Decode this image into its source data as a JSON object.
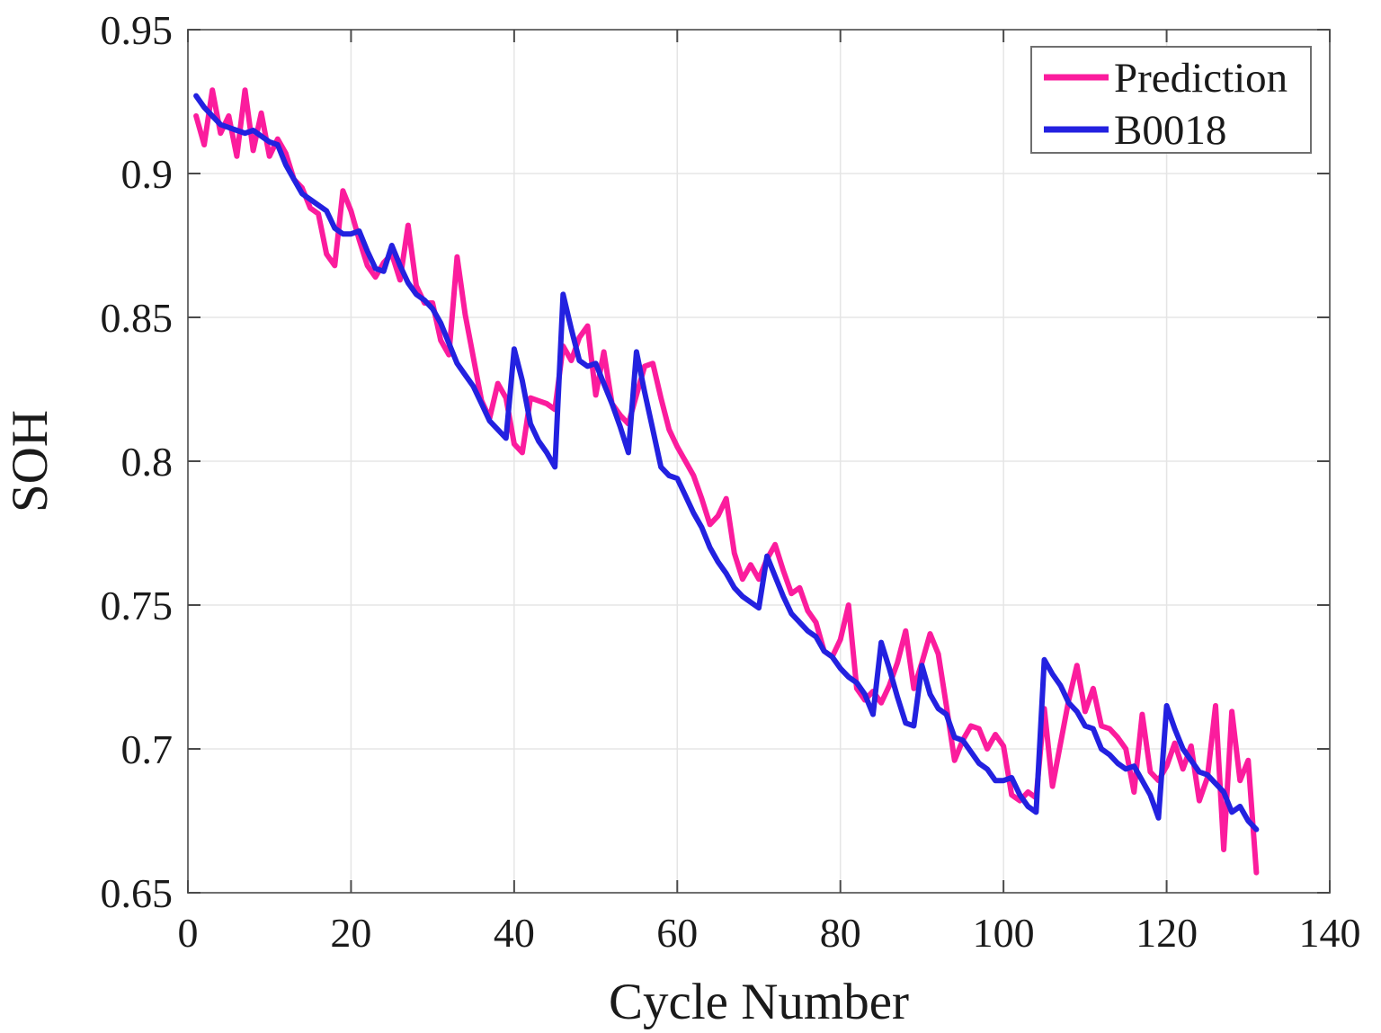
{
  "figure": {
    "background": "#ffffff",
    "text_color": "#1a1a1a",
    "axis_box_color": "#6f6f6f",
    "tick_color": "#4a4a4a",
    "grid_color": "#e5e5e5",
    "legend_border_color": "#6f6f6f"
  },
  "chart_data": {
    "type": "line",
    "title": "",
    "xlabel": "Cycle Number",
    "ylabel": "SOH",
    "xlim": [
      0,
      140
    ],
    "ylim": [
      0.65,
      0.95
    ],
    "x_ticks": [
      0,
      20,
      40,
      60,
      80,
      100,
      120,
      140
    ],
    "x_tick_labels": [
      "0",
      "20",
      "40",
      "60",
      "80",
      "100",
      "120",
      "140"
    ],
    "y_ticks": [
      0.65,
      0.7,
      0.75,
      0.8,
      0.85,
      0.9,
      0.95
    ],
    "y_tick_labels": [
      "0.65",
      "0.7",
      "0.75",
      "0.8",
      "0.85",
      "0.9",
      "0.95"
    ],
    "grid": true,
    "legend_position": "top-right",
    "x_start": 1,
    "x_step": 1,
    "series": [
      {
        "name": "Prediction",
        "color": "#fb1c9d",
        "line_width": 6,
        "values": [
          0.92,
          0.91,
          0.929,
          0.914,
          0.92,
          0.906,
          0.929,
          0.908,
          0.921,
          0.906,
          0.912,
          0.907,
          0.898,
          0.895,
          0.888,
          0.886,
          0.872,
          0.868,
          0.894,
          0.887,
          0.877,
          0.868,
          0.864,
          0.869,
          0.872,
          0.863,
          0.882,
          0.861,
          0.855,
          0.855,
          0.842,
          0.837,
          0.871,
          0.851,
          0.836,
          0.821,
          0.815,
          0.827,
          0.822,
          0.806,
          0.803,
          0.822,
          0.821,
          0.82,
          0.818,
          0.84,
          0.835,
          0.843,
          0.847,
          0.823,
          0.838,
          0.82,
          0.816,
          0.813,
          0.823,
          0.833,
          0.834,
          0.822,
          0.811,
          0.805,
          0.8,
          0.795,
          0.787,
          0.778,
          0.781,
          0.787,
          0.768,
          0.759,
          0.764,
          0.759,
          0.766,
          0.771,
          0.762,
          0.754,
          0.756,
          0.748,
          0.744,
          0.734,
          0.732,
          0.738,
          0.75,
          0.721,
          0.717,
          0.72,
          0.716,
          0.722,
          0.73,
          0.741,
          0.721,
          0.73,
          0.74,
          0.733,
          0.715,
          0.696,
          0.703,
          0.708,
          0.707,
          0.7,
          0.705,
          0.701,
          0.684,
          0.682,
          0.685,
          0.683,
          0.714,
          0.687,
          0.702,
          0.717,
          0.729,
          0.713,
          0.721,
          0.708,
          0.707,
          0.704,
          0.7,
          0.685,
          0.712,
          0.692,
          0.689,
          0.694,
          0.702,
          0.693,
          0.701,
          0.682,
          0.69,
          0.715,
          0.665,
          0.713,
          0.689,
          0.696,
          0.657
        ]
      },
      {
        "name": "B0018",
        "color": "#2321e0",
        "line_width": 6,
        "values": [
          0.927,
          0.923,
          0.92,
          0.917,
          0.916,
          0.915,
          0.914,
          0.915,
          0.913,
          0.911,
          0.91,
          0.903,
          0.898,
          0.893,
          0.891,
          0.889,
          0.887,
          0.881,
          0.879,
          0.879,
          0.88,
          0.873,
          0.867,
          0.866,
          0.875,
          0.868,
          0.862,
          0.858,
          0.856,
          0.853,
          0.848,
          0.841,
          0.834,
          0.83,
          0.826,
          0.82,
          0.814,
          0.811,
          0.808,
          0.839,
          0.828,
          0.813,
          0.807,
          0.803,
          0.798,
          0.858,
          0.846,
          0.835,
          0.833,
          0.834,
          0.827,
          0.82,
          0.812,
          0.803,
          0.838,
          0.824,
          0.811,
          0.798,
          0.795,
          0.794,
          0.788,
          0.782,
          0.777,
          0.77,
          0.765,
          0.761,
          0.756,
          0.753,
          0.751,
          0.749,
          0.767,
          0.76,
          0.753,
          0.747,
          0.744,
          0.741,
          0.739,
          0.734,
          0.732,
          0.728,
          0.725,
          0.723,
          0.719,
          0.712,
          0.737,
          0.728,
          0.718,
          0.709,
          0.708,
          0.729,
          0.719,
          0.714,
          0.712,
          0.704,
          0.703,
          0.699,
          0.695,
          0.693,
          0.689,
          0.689,
          0.69,
          0.684,
          0.68,
          0.678,
          0.731,
          0.726,
          0.722,
          0.716,
          0.713,
          0.708,
          0.707,
          0.7,
          0.698,
          0.695,
          0.693,
          0.694,
          0.689,
          0.684,
          0.676,
          0.715,
          0.707,
          0.7,
          0.696,
          0.692,
          0.691,
          0.688,
          0.685,
          0.678,
          0.68,
          0.675,
          0.672
        ]
      }
    ]
  },
  "legend": {
    "entries": [
      {
        "label": "Prediction",
        "swatch_color": "#fb1c9d"
      },
      {
        "label": "B0018",
        "swatch_color": "#2321e0"
      }
    ]
  }
}
